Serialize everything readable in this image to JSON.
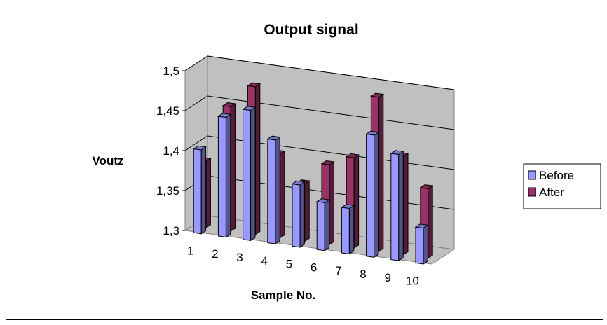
{
  "chart_data": {
    "type": "bar",
    "title": "Output signal",
    "xlabel": "Sample No.",
    "ylabel": "Voutz",
    "categories": [
      "1",
      "2",
      "3",
      "4",
      "5",
      "6",
      "7",
      "8",
      "9",
      "10"
    ],
    "series": [
      {
        "name": "Before",
        "color": "#9999ff",
        "values": [
          1.405,
          1.45,
          1.463,
          1.43,
          1.378,
          1.36,
          1.357,
          1.453,
          1.433,
          1.345
        ]
      },
      {
        "name": "After",
        "color": "#993366",
        "values": [
          1.383,
          1.456,
          1.485,
          1.405,
          1.372,
          1.4,
          1.413,
          1.493,
          1.423,
          1.387
        ]
      }
    ],
    "ylim": [
      1.3,
      1.5
    ],
    "yticks": [
      "1,3",
      "1,35",
      "1,4",
      "1,45",
      "1,5"
    ],
    "grid": true,
    "legend_position": "right",
    "style": "3d-clustered-column"
  }
}
